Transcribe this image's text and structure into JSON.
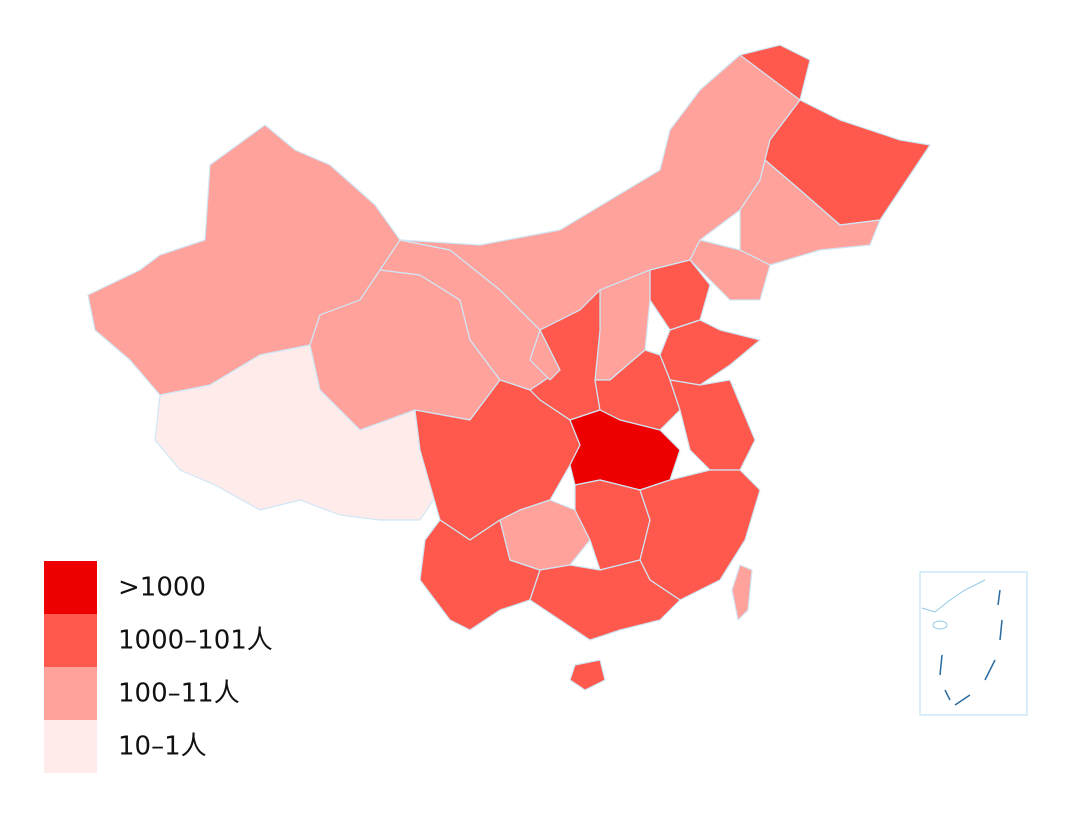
{
  "legend": {
    "items": [
      {
        "label": ">1000",
        "color": "#ee0000"
      },
      {
        "label": "1000–101人",
        "color": "#ff584c"
      },
      {
        "label": "100–11人",
        "color": "#ffa29c"
      },
      {
        "label": "10–1人",
        "color": "#ffecea"
      }
    ]
  }
}
